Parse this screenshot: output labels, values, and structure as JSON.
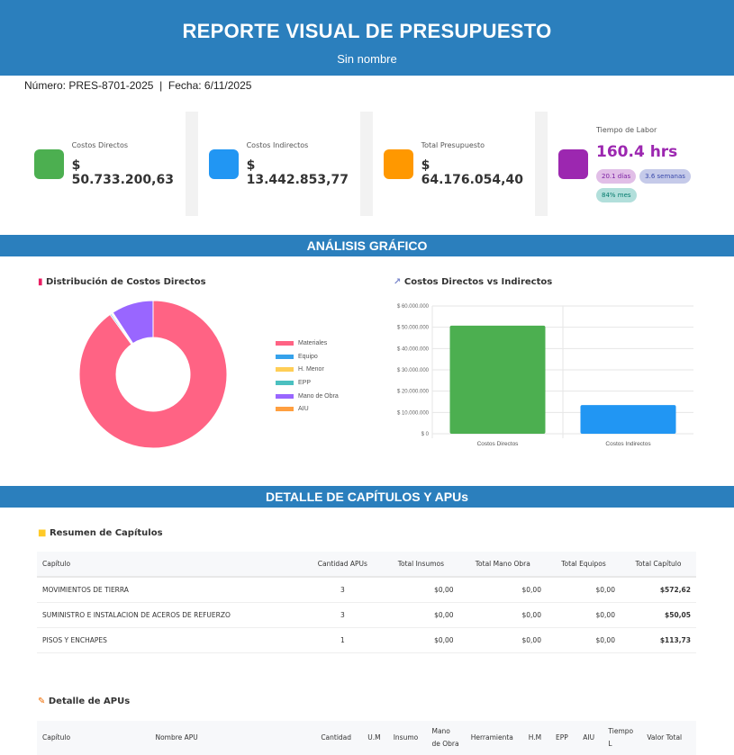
{
  "header": {
    "title": "REPORTE VISUAL DE PRESUPUESTO",
    "subtitle": "Sin nombre"
  },
  "info": {
    "numero_label": "Número:",
    "numero": "PRES-8701-2025",
    "separator": "|",
    "fecha_label": "Fecha:",
    "fecha": "6/11/2025"
  },
  "cards": [
    {
      "label": "Costos Directos",
      "value": "$ 50.733.200,63",
      "color": "#4caf50"
    },
    {
      "label": "Costos Indirectos",
      "value": "$ 13.442.853,77",
      "color": "#2196f3"
    },
    {
      "label": "Total Presupuesto",
      "value": "$ 64.176.054,40",
      "color": "#ff9800"
    }
  ],
  "labor": {
    "label": "Tiempo de Labor",
    "value": "160.4 hrs",
    "color": "#9c27b0",
    "pills": [
      "20.1 días",
      "3.6 semanas",
      "84% mes"
    ]
  },
  "sections": {
    "analisis": "ANÁLISIS GRÁFICO",
    "detalle": "DETALLE DE CAPÍTULOS Y APUs"
  },
  "chart_data": [
    {
      "type": "pie",
      "title": "Distribución de Costos Directos",
      "icon": "bar-chart-icon",
      "donut": true,
      "categories": [
        "Materiales",
        "Equipo",
        "H. Menor",
        "EPP",
        "Mano de Obra",
        "AIU"
      ],
      "values": [
        45700000,
        150000,
        120000,
        100000,
        4663200,
        0
      ],
      "colors": [
        "#ff6384",
        "#36a2eb",
        "#ffce56",
        "#4bc0c0",
        "#9966ff",
        "#ff9f40"
      ],
      "legend": "right"
    },
    {
      "type": "bar",
      "title": "Costos Directos vs Indirectos",
      "icon": "trend-chart-icon",
      "categories": [
        "Costos Directos",
        "Costos Indirectos"
      ],
      "values": [
        50733200.63,
        13442853.77
      ],
      "colors": [
        "#4caf50",
        "#2196f3"
      ],
      "ylim": [
        0,
        60000000
      ],
      "yticks": [
        "$ 0",
        "$ 10.000.000",
        "$ 20.000.000",
        "$ 30.000.000",
        "$ 40.000.000",
        "$ 50.000.000",
        "$ 60.000.000"
      ],
      "grid": true
    }
  ],
  "resumen": {
    "title": "Resumen de Capítulos",
    "headers": [
      "Capítulo",
      "Cantidad APUs",
      "Total Insumos",
      "Total Mano Obra",
      "Total Equipos",
      "Total Capítulo"
    ],
    "rows": [
      [
        "MOVIMIENTOS DE TIERRA",
        "3",
        "$0,00",
        "$0,00",
        "$0,00",
        "$572,62"
      ],
      [
        "SUMINISTRO E INSTALACION DE ACEROS DE REFUERZO",
        "3",
        "$0,00",
        "$0,00",
        "$0,00",
        "$50,05"
      ],
      [
        "PISOS Y ENCHAPES",
        "1",
        "$0,00",
        "$0,00",
        "$0,00",
        "$113,73"
      ]
    ]
  },
  "apus": {
    "title": "Detalle de APUs",
    "headers": [
      "Capítulo",
      "Nombre APU",
      "Cantidad",
      "U.M",
      "Insumo",
      "Mano de Obra",
      "Herramienta",
      "H.M",
      "EPP",
      "AIU",
      "Tiempo L",
      "Valor Total"
    ]
  }
}
